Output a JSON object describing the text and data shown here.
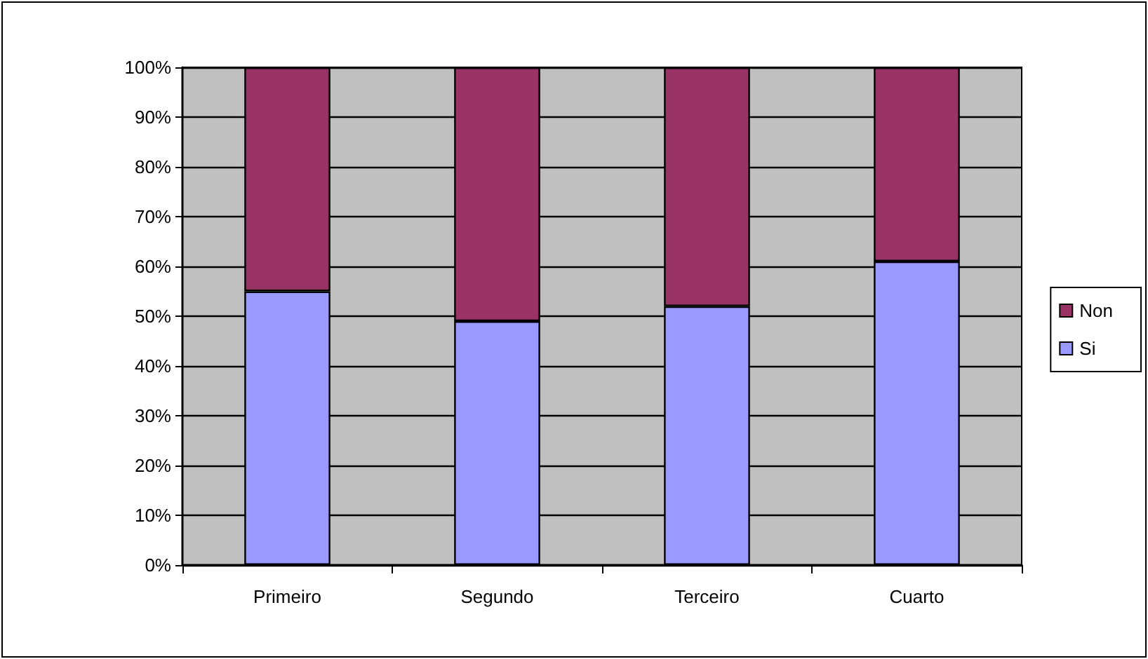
{
  "chart_data": {
    "type": "bar",
    "stacked": true,
    "categories": [
      "Primeiro",
      "Segundo",
      "Terceiro",
      "Cuarto"
    ],
    "series": [
      {
        "name": "Si",
        "color": "#9999ff",
        "values": [
          55,
          49,
          52,
          61
        ]
      },
      {
        "name": "Non",
        "color": "#993366",
        "values": [
          45,
          51,
          48,
          39
        ]
      }
    ],
    "ylim": [
      0,
      100
    ],
    "yticks": [
      {
        "value": 0,
        "label": "0%"
      },
      {
        "value": 10,
        "label": "10%"
      },
      {
        "value": 20,
        "label": "20%"
      },
      {
        "value": 30,
        "label": "30%"
      },
      {
        "value": 40,
        "label": "40%"
      },
      {
        "value": 50,
        "label": "50%"
      },
      {
        "value": 60,
        "label": "60%"
      },
      {
        "value": 70,
        "label": "70%"
      },
      {
        "value": 80,
        "label": "80%"
      },
      {
        "value": 90,
        "label": "90%"
      },
      {
        "value": 100,
        "label": "100%"
      }
    ],
    "grid": "y",
    "legend": "right"
  }
}
